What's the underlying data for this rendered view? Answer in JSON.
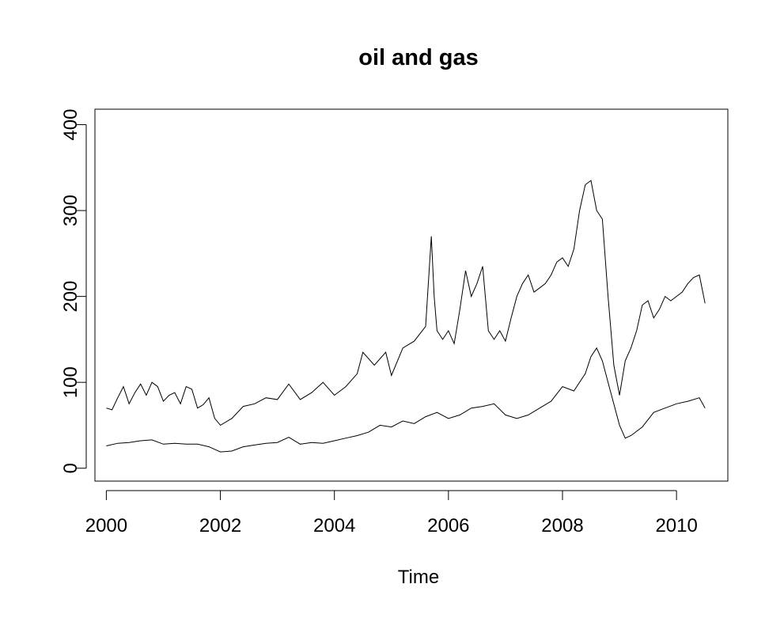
{
  "chart_data": {
    "type": "line",
    "title": "oil and gas",
    "xlabel": "Time",
    "ylabel": "",
    "xlim": [
      1999.8,
      2010.9
    ],
    "ylim": [
      -15,
      418
    ],
    "grid": false,
    "legend": "none",
    "x_ticks": [
      2000,
      2002,
      2004,
      2006,
      2008,
      2010
    ],
    "x_tick_labels": [
      "2000",
      "2002",
      "2004",
      "2006",
      "2008",
      "2010"
    ],
    "y_ticks": [
      0,
      100,
      200,
      300,
      400
    ],
    "y_tick_labels": [
      "0",
      "100",
      "200",
      "300",
      "400"
    ],
    "series": [
      {
        "x": [
          2000,
          2000.1,
          2000.2,
          2000.3,
          2000.4,
          2000.5,
          2000.6,
          2000.7,
          2000.8,
          2000.9,
          2001,
          2001.1,
          2001.2,
          2001.3,
          2001.4,
          2001.5,
          2001.6,
          2001.7,
          2001.8,
          2001.9,
          2002,
          2002.2,
          2002.4,
          2002.6,
          2002.8,
          2003,
          2003.2,
          2003.4,
          2003.6,
          2003.8,
          2004,
          2004.2,
          2004.4,
          2004.5,
          2004.7,
          2004.9,
          2005,
          2005.2,
          2005.4,
          2005.6,
          2005.7,
          2005.75,
          2005.8,
          2005.9,
          2006,
          2006.1,
          2006.2,
          2006.3,
          2006.4,
          2006.5,
          2006.6,
          2006.7,
          2006.8,
          2006.9,
          2007,
          2007.1,
          2007.2,
          2007.3,
          2007.4,
          2007.5,
          2007.6,
          2007.7,
          2007.8,
          2007.9,
          2008,
          2008.1,
          2008.2,
          2008.3,
          2008.4,
          2008.5,
          2008.6,
          2008.7,
          2008.8,
          2008.9,
          2009,
          2009.1,
          2009.2,
          2009.3,
          2009.4,
          2009.5,
          2009.6,
          2009.7,
          2009.8,
          2009.9,
          2010,
          2010.1,
          2010.2,
          2010.3,
          2010.4,
          2010.5
        ],
        "values": [
          70,
          68,
          82,
          95,
          75,
          88,
          98,
          85,
          100,
          95,
          78,
          85,
          88,
          75,
          95,
          92,
          70,
          74,
          82,
          58,
          50,
          58,
          72,
          75,
          82,
          80,
          98,
          80,
          88,
          100,
          85,
          95,
          110,
          135,
          120,
          135,
          108,
          140,
          148,
          165,
          270,
          200,
          160,
          150,
          160,
          145,
          185,
          230,
          200,
          215,
          235,
          160,
          150,
          160,
          148,
          175,
          200,
          215,
          225,
          205,
          210,
          215,
          225,
          240,
          245,
          235,
          255,
          300,
          330,
          335,
          300,
          290,
          200,
          120,
          85,
          125,
          140,
          160,
          190,
          195,
          175,
          185,
          200,
          195,
          200,
          205,
          215,
          222,
          225,
          192
        ]
      },
      {
        "x": [
          2000,
          2000.2,
          2000.4,
          2000.6,
          2000.8,
          2001,
          2001.2,
          2001.4,
          2001.6,
          2001.8,
          2002,
          2002.2,
          2002.4,
          2002.6,
          2002.8,
          2003,
          2003.2,
          2003.4,
          2003.6,
          2003.8,
          2004,
          2004.2,
          2004.4,
          2004.6,
          2004.8,
          2005,
          2005.2,
          2005.4,
          2005.6,
          2005.8,
          2006,
          2006.2,
          2006.4,
          2006.6,
          2006.8,
          2007,
          2007.2,
          2007.4,
          2007.6,
          2007.8,
          2008,
          2008.2,
          2008.4,
          2008.5,
          2008.6,
          2008.7,
          2008.8,
          2009,
          2009.1,
          2009.2,
          2009.4,
          2009.6,
          2009.8,
          2010,
          2010.2,
          2010.4,
          2010.5
        ],
        "values": [
          26,
          29,
          30,
          32,
          33,
          28,
          29,
          28,
          28,
          25,
          19,
          20,
          25,
          27,
          29,
          30,
          36,
          28,
          30,
          29,
          32,
          35,
          38,
          42,
          50,
          48,
          55,
          52,
          60,
          65,
          58,
          62,
          70,
          72,
          75,
          62,
          58,
          62,
          70,
          78,
          95,
          90,
          110,
          130,
          140,
          125,
          100,
          50,
          35,
          38,
          48,
          65,
          70,
          75,
          78,
          82,
          70
        ]
      }
    ]
  }
}
